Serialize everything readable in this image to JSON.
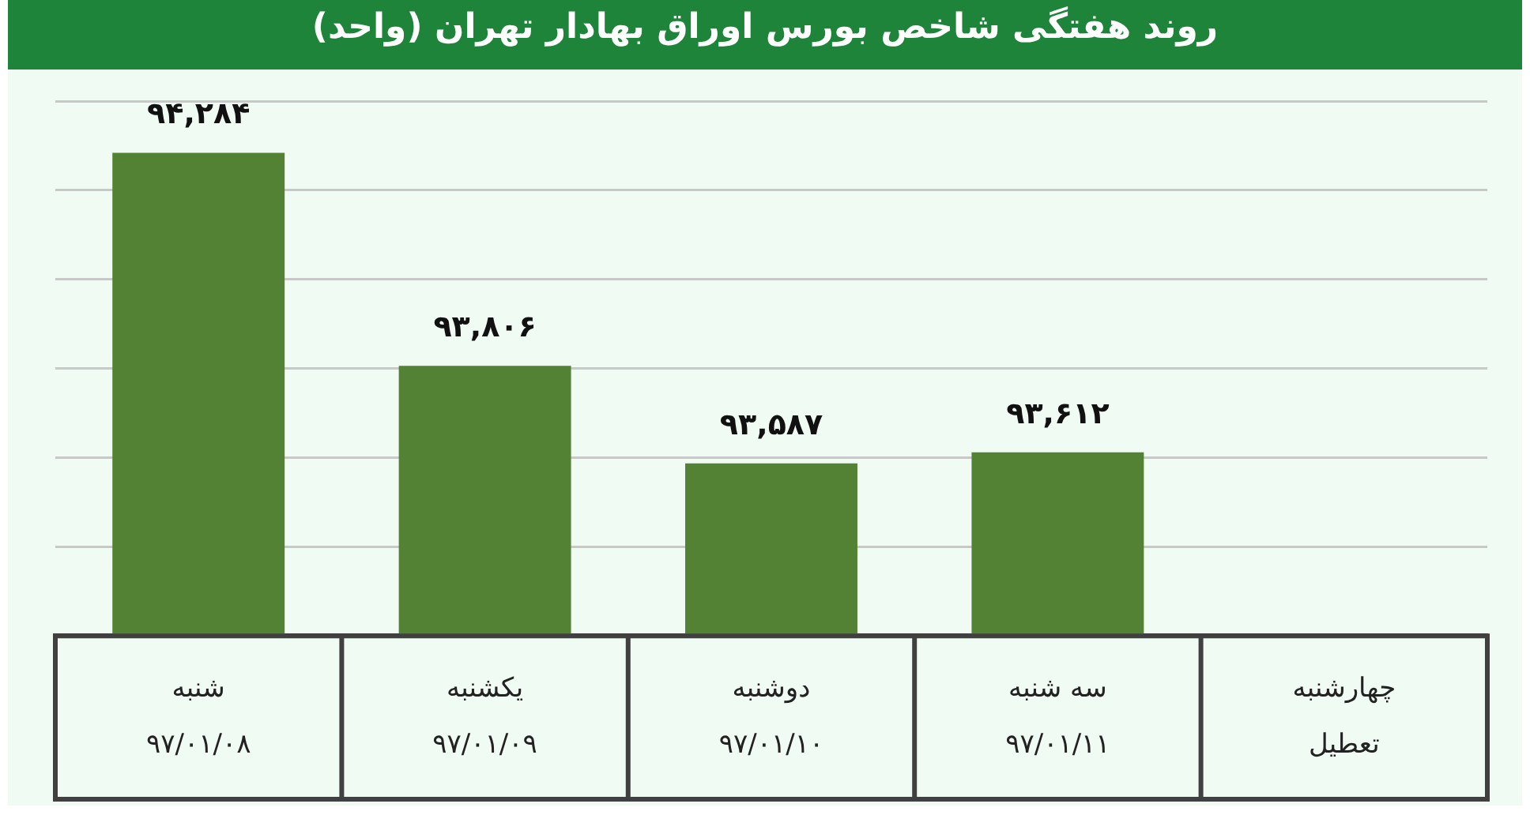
{
  "chart_data": {
    "type": "bar",
    "title": "روند هفتگی شاخص بورس اوراق بهادار تهران (واحد)",
    "categories": [
      "شنبه\n۹۷/۰۱/۰۸",
      "یکشنبه\n۹۷/۰۱/۰۹",
      "دوشنبه\n۹۷/۰۱/۱۰",
      "سه شنبه\n۹۷/۰۱/۱۱",
      "چهارشنبه\nتعطیل"
    ],
    "values": [
      94284,
      93806,
      93587,
      93612,
      null
    ],
    "value_labels": [
      "۹۴,۲۸۴",
      "۹۳,۸۰۶",
      "۹۳,۵۸۷",
      "۹۳,۶۱۲",
      null
    ],
    "color": "#548235",
    "ylim": [
      93200,
      94400
    ],
    "yticks": [
      {
        "value": 93400,
        "label": null
      },
      {
        "value": 93600,
        "label": null
      },
      {
        "value": 93800,
        "label": null
      },
      {
        "value": 94000,
        "label": null
      },
      {
        "value": 94200,
        "label": null
      },
      {
        "value": 94400,
        "label": null
      }
    ],
    "grid": "y",
    "legend": false,
    "tick_labels": "x"
  }
}
